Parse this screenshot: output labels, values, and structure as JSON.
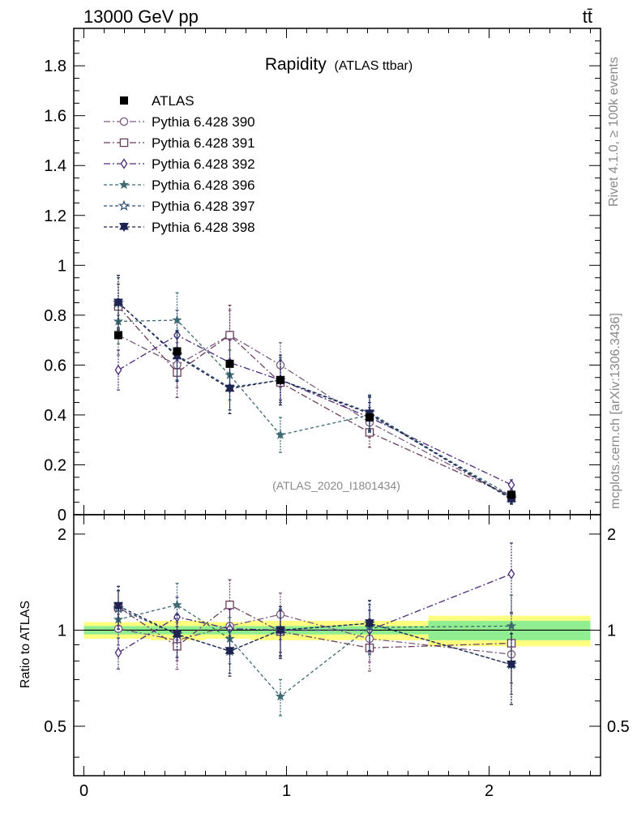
{
  "header": {
    "left": "13000 GeV pp",
    "right": "tt̄"
  },
  "side_labels": {
    "rivet": "Rivet 4.1.0, ≥ 100k events",
    "mcplots": "mcplots.cern.ch [arXiv:1306.3436]"
  },
  "chart_data": [
    {
      "type": "line",
      "panel": "main",
      "title": "Rapidity",
      "title_suffix": "(ATLAS ttbar)",
      "watermark": "(ATLAS_2020_I1801434)",
      "xlabel": "",
      "ylabel": "",
      "xlim": [
        -0.05,
        2.55
      ],
      "ylim": [
        0,
        1.95
      ],
      "yticks": [
        0,
        0.2,
        0.4,
        0.6,
        0.8,
        1,
        1.2,
        1.4,
        1.6,
        1.8
      ],
      "ytick_labels": [
        "0",
        "0.2",
        "0.4",
        "0.6",
        "0.8",
        "1",
        "1.2",
        "1.4",
        "1.6",
        "1.8"
      ],
      "x": [
        0.17,
        0.46,
        0.72,
        0.97,
        1.41,
        2.11
      ],
      "reference": {
        "name": "ATLAS",
        "values": [
          0.72,
          0.655,
          0.605,
          0.54,
          0.39,
          0.08
        ],
        "bins": [
          [
            0,
            0.33
          ],
          [
            0.33,
            0.6
          ],
          [
            0.6,
            0.82
          ],
          [
            0.82,
            1.1
          ],
          [
            1.1,
            1.7
          ],
          [
            1.7,
            2.5
          ]
        ],
        "band_green": [
          0.03,
          0.03,
          0.03,
          0.03,
          0.03,
          0.07
        ],
        "band_yellow": [
          0.06,
          0.07,
          0.06,
          0.07,
          0.07,
          0.11
        ]
      },
      "series": [
        {
          "name": "Pythia 6.428 390",
          "color": "#7a5a80",
          "marker": "circle-open",
          "dash": "8,3,2,3",
          "values": [
            0.72,
            0.6,
            0.72,
            0.6,
            0.37,
            0.07
          ],
          "errors": [
            0.08,
            0.09,
            0.1,
            0.09,
            0.06,
            0.02
          ]
        },
        {
          "name": "Pythia 6.428 391",
          "color": "#6b3f5a",
          "marker": "square-open",
          "dash": "8,3,2,3",
          "values": [
            0.835,
            0.57,
            0.72,
            0.53,
            0.33,
            0.075
          ],
          "errors": [
            0.09,
            0.1,
            0.12,
            0.09,
            0.06,
            0.02
          ]
        },
        {
          "name": "Pythia 6.428 392",
          "color": "#4a2a7a",
          "marker": "diamond-open",
          "dash": "8,3,2,3",
          "values": [
            0.58,
            0.72,
            0.61,
            0.54,
            0.39,
            0.12
          ],
          "errors": [
            0.08,
            0.1,
            0.09,
            0.08,
            0.06,
            0.02
          ]
        },
        {
          "name": "Pythia 6.428 396",
          "color": "#3d6a72",
          "marker": "star-filled",
          "dash": "4,3",
          "values": [
            0.775,
            0.78,
            0.56,
            0.32,
            0.4,
            0.075
          ],
          "errors": [
            0.09,
            0.11,
            0.1,
            0.07,
            0.07,
            0.02
          ]
        },
        {
          "name": "Pythia 6.428 397",
          "color": "#2d5070",
          "marker": "star-open",
          "dash": "4,3",
          "values": [
            0.85,
            0.64,
            0.51,
            0.54,
            0.41,
            0.065
          ],
          "errors": [
            0.1,
            0.1,
            0.09,
            0.09,
            0.07,
            0.02
          ]
        },
        {
          "name": "Pythia 6.428 398",
          "color": "#1f2350",
          "marker": "triangle-down-filled",
          "dash": "4,3",
          "values": [
            0.85,
            0.635,
            0.505,
            0.54,
            0.405,
            0.062
          ],
          "errors": [
            0.11,
            0.1,
            0.1,
            0.1,
            0.07,
            0.02
          ]
        }
      ]
    },
    {
      "type": "line",
      "panel": "ratio",
      "ylabel": "Ratio to ATLAS",
      "ylim": [
        0.35,
        2.3
      ],
      "yticks": [
        0.5,
        1,
        2
      ],
      "ytick_labels": [
        "0.5",
        "1",
        "2"
      ],
      "xticks": [
        0,
        1,
        2
      ],
      "xtick_labels": [
        "0",
        "1",
        "2"
      ],
      "series_ratio": [
        {
          "name": "Pythia 6.428 390",
          "values": [
            1.01,
            0.93,
            1.03,
            1.12,
            0.94,
            0.84
          ]
        },
        {
          "name": "Pythia 6.428 391",
          "values": [
            1.18,
            0.89,
            1.2,
            0.99,
            0.88,
            0.91
          ]
        },
        {
          "name": "Pythia 6.428 392",
          "values": [
            0.85,
            1.1,
            1.01,
            1.0,
            1.0,
            1.5
          ]
        },
        {
          "name": "Pythia 6.428 396",
          "values": [
            1.08,
            1.2,
            0.94,
            0.62,
            1.02,
            1.03
          ]
        },
        {
          "name": "Pythia 6.428 397",
          "values": [
            1.17,
            0.97,
            0.86,
            1.0,
            1.05,
            0.78
          ]
        },
        {
          "name": "Pythia 6.428 398",
          "values": [
            1.19,
            0.97,
            0.86,
            1.0,
            1.05,
            0.78
          ]
        }
      ]
    }
  ]
}
